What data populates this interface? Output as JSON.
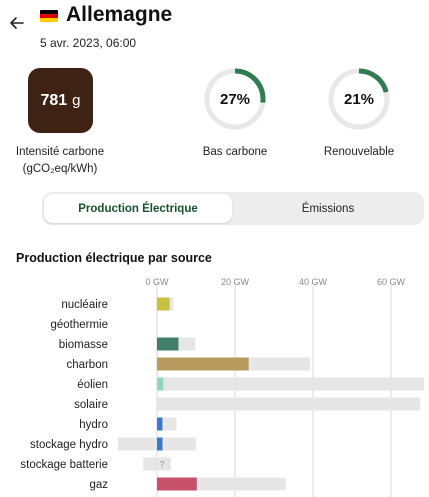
{
  "header": {
    "country": "Allemagne",
    "datetime": "5 avr. 2023, 06:00",
    "flag_colors": [
      "#000000",
      "#dd0000",
      "#ffce00"
    ]
  },
  "metrics": {
    "carbon_intensity": {
      "value": "781",
      "unit": "g",
      "label_line1": "Intensité carbone",
      "label_line2": "(gCO₂eq/kWh)",
      "color": "#3e2214"
    },
    "low_carbon": {
      "value_text": "27%",
      "fraction": 0.27,
      "label": "Bas carbone"
    },
    "renewable": {
      "value_text": "21%",
      "fraction": 0.21,
      "label": "Renouvelable"
    },
    "ring_color": "#2f7d4f",
    "ring_track_color": "#e8e8ea"
  },
  "tabs": [
    {
      "label": "Production Électrique",
      "active": true
    },
    {
      "label": "Émissions",
      "active": false
    }
  ],
  "section_title": "Production électrique par source",
  "chart_data": {
    "type": "bar",
    "orientation": "horizontal",
    "x_unit": "GW",
    "x_ticks": [
      "0 GW",
      "20 GW",
      "40 GW",
      "60 GW"
    ],
    "x_tick_values": [
      0,
      20,
      40,
      60
    ],
    "categories": [
      "nucléaire",
      "géothermie",
      "biomasse",
      "charbon",
      "éolien",
      "solaire",
      "hydro",
      "stockage hydro",
      "stockage batterie",
      "gaz"
    ],
    "series": [
      {
        "values": [
          3.2,
          0,
          5.5,
          23.5,
          1.6,
          0,
          1.4,
          1.4,
          0,
          10.2
        ],
        "colors": [
          "#c9c23a",
          "#c9c23a",
          "#3f7f6a",
          "#b89a5e",
          "#8fd8c0",
          "#f2c94c",
          "#3a78c9",
          "#3a78c9",
          "#3a78c9",
          "#c7506b"
        ]
      }
    ],
    "capacity": [
      [
        0,
        4.2
      ],
      null,
      [
        0,
        9.8
      ],
      [
        0,
        39.2
      ],
      [
        0,
        68.5
      ],
      [
        0,
        67.5
      ],
      [
        0,
        5.0
      ],
      [
        -10.0,
        10.0
      ],
      [
        -3.5,
        3.5
      ],
      [
        0,
        33.0
      ]
    ],
    "unknown_marker": "?",
    "unknown_index": 8,
    "xlim": [
      -10,
      70
    ]
  }
}
